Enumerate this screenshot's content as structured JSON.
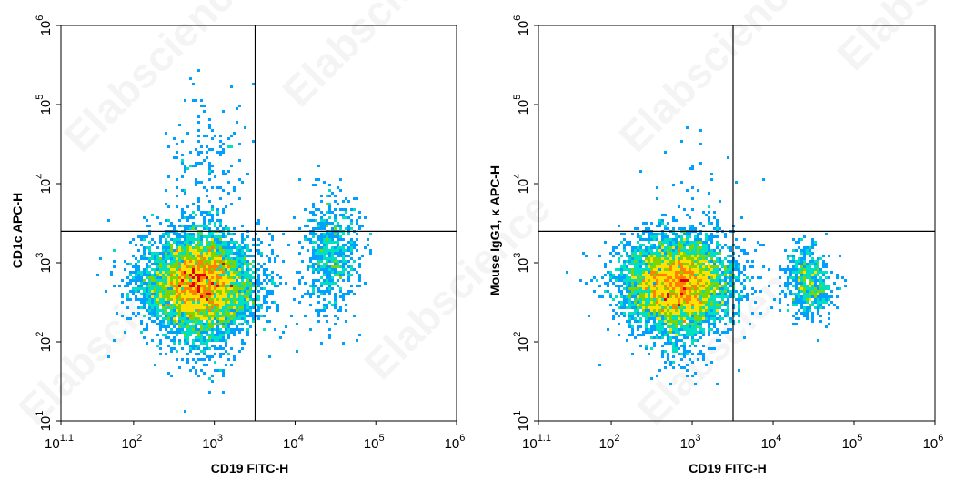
{
  "watermark": "Elabscience",
  "chart_data": [
    {
      "type": "scatter",
      "subtype": "flow-cytometry-density-dot-plot",
      "xlabel": "CD19 FITC-H",
      "ylabel": "CD1c APC-H",
      "x_scale": "log",
      "y_scale": "log",
      "xlim": [
        12.6,
        1000000
      ],
      "ylim": [
        10,
        1000000
      ],
      "x_ticks": [
        {
          "base": "10",
          "exp": "1.1"
        },
        {
          "base": "10",
          "exp": "2"
        },
        {
          "base": "10",
          "exp": "3"
        },
        {
          "base": "10",
          "exp": "4"
        },
        {
          "base": "10",
          "exp": "5"
        },
        {
          "base": "10",
          "exp": "6"
        }
      ],
      "y_ticks": [
        {
          "base": "10",
          "exp": "1"
        },
        {
          "base": "10",
          "exp": "2"
        },
        {
          "base": "10",
          "exp": "3"
        },
        {
          "base": "10",
          "exp": "4"
        },
        {
          "base": "10",
          "exp": "5"
        },
        {
          "base": "10",
          "exp": "6"
        }
      ],
      "gate": {
        "x": 3200,
        "y": 2500
      },
      "colormap": [
        "#0000ff",
        "#00a0ff",
        "#00e0c0",
        "#7cd400",
        "#ffe000",
        "#ff8000",
        "#e00000"
      ],
      "populations": [
        {
          "cx": 650,
          "cy": 550,
          "sx_dec": 0.36,
          "sy_dec": 0.3,
          "n": 5200
        },
        {
          "cx": 700,
          "cy": 400,
          "sx_dec": 0.22,
          "sy_dec": 0.45,
          "n": 900
        },
        {
          "cx": 28000,
          "cy": 1300,
          "sx_dec": 0.17,
          "sy_dec": 0.38,
          "n": 650
        },
        {
          "cx": 800,
          "cy": 15000,
          "sx_dec": 0.25,
          "sy_dec": 0.5,
          "n": 170
        }
      ],
      "grid": false,
      "legend": "none"
    },
    {
      "type": "scatter",
      "subtype": "flow-cytometry-density-dot-plot",
      "xlabel": "CD19 FITC-H",
      "ylabel": "Mouse IgG1, κ APC-H",
      "x_scale": "log",
      "y_scale": "log",
      "xlim": [
        12.6,
        1000000
      ],
      "ylim": [
        10,
        1000000
      ],
      "x_ticks": [
        {
          "base": "10",
          "exp": "1.1"
        },
        {
          "base": "10",
          "exp": "2"
        },
        {
          "base": "10",
          "exp": "3"
        },
        {
          "base": "10",
          "exp": "4"
        },
        {
          "base": "10",
          "exp": "5"
        },
        {
          "base": "10",
          "exp": "6"
        }
      ],
      "y_ticks": [
        {
          "base": "10",
          "exp": "1"
        },
        {
          "base": "10",
          "exp": "2"
        },
        {
          "base": "10",
          "exp": "3"
        },
        {
          "base": "10",
          "exp": "4"
        },
        {
          "base": "10",
          "exp": "5"
        },
        {
          "base": "10",
          "exp": "6"
        }
      ],
      "gate": {
        "x": 3200,
        "y": 2500
      },
      "colormap": [
        "#0000ff",
        "#00a0ff",
        "#00e0c0",
        "#7cd400",
        "#ffe000",
        "#ff8000",
        "#e00000"
      ],
      "populations": [
        {
          "cx": 650,
          "cy": 550,
          "sx_dec": 0.34,
          "sy_dec": 0.28,
          "n": 5200
        },
        {
          "cx": 650,
          "cy": 300,
          "sx_dec": 0.2,
          "sy_dec": 0.4,
          "n": 700
        },
        {
          "cx": 28000,
          "cy": 550,
          "sx_dec": 0.14,
          "sy_dec": 0.22,
          "n": 600
        },
        {
          "cx": 1200,
          "cy": 8000,
          "sx_dec": 0.3,
          "sy_dec": 0.4,
          "n": 40
        }
      ],
      "grid": false,
      "legend": "none"
    }
  ]
}
